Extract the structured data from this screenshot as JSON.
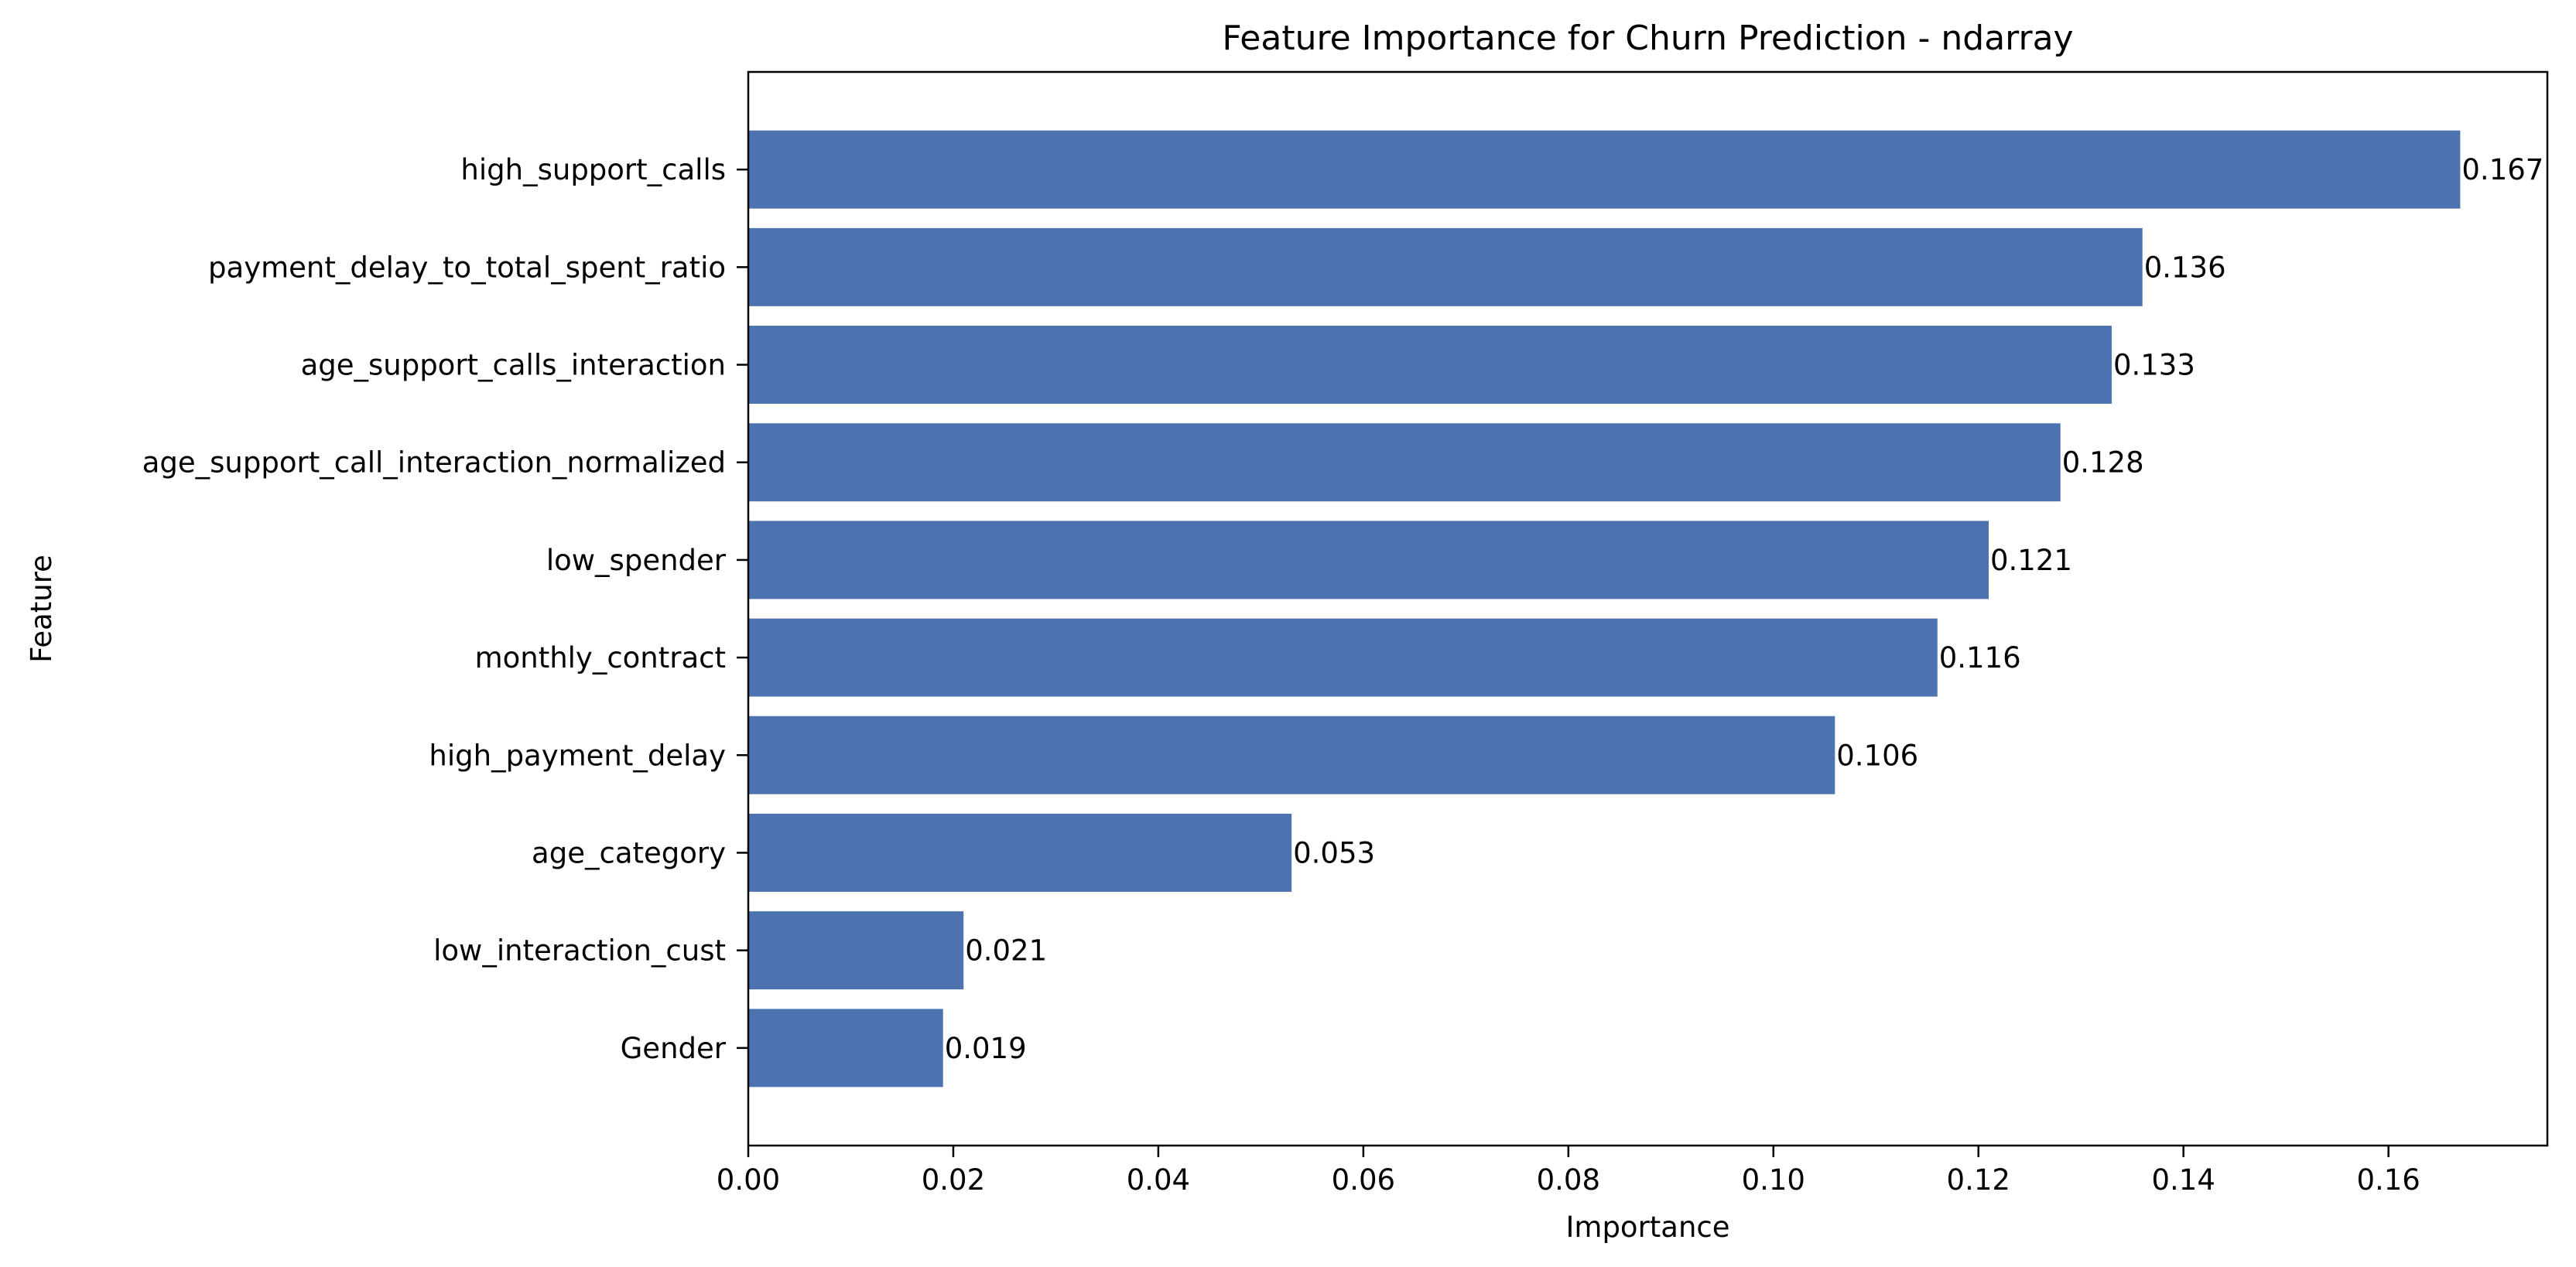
{
  "chart_data": {
    "type": "bar",
    "orientation": "horizontal",
    "title": "Feature Importance for Churn Prediction - ndarray",
    "xlabel": "Importance",
    "ylabel": "Feature",
    "xlim": [
      0,
      0.1755
    ],
    "xticks": [
      0.0,
      0.02,
      0.04,
      0.06,
      0.08,
      0.1,
      0.12,
      0.14,
      0.16
    ],
    "xtick_labels": [
      "0.00",
      "0.02",
      "0.04",
      "0.06",
      "0.08",
      "0.10",
      "0.12",
      "0.14",
      "0.16"
    ],
    "categories": [
      "high_support_calls",
      "payment_delay_to_total_spent_ratio",
      "age_support_calls_interaction",
      "age_support_call_interaction_normalized",
      "low_spender",
      "monthly_contract",
      "high_payment_delay",
      "age_category",
      "low_interaction_cust",
      "Gender"
    ],
    "values": [
      0.167,
      0.136,
      0.133,
      0.128,
      0.121,
      0.116,
      0.106,
      0.053,
      0.021,
      0.019
    ],
    "value_labels": [
      "0.167",
      "0.136",
      "0.133",
      "0.128",
      "0.121",
      "0.116",
      "0.106",
      "0.053",
      "0.021",
      "0.019"
    ],
    "bar_color": "#4c72b0",
    "grid": false,
    "legend": "none"
  }
}
